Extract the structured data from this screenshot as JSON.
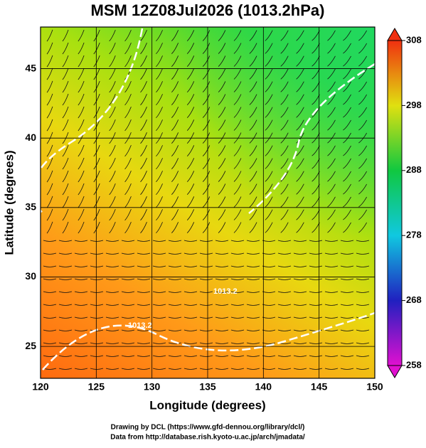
{
  "title": "MSM 12Z08Jul2026 (1013.2hPa)",
  "x_label": "Longitude (degrees)",
  "y_label": "Latitude  (degrees)",
  "xlim": [
    120,
    150
  ],
  "ylim": [
    22.7,
    48
  ],
  "xticks": [
    120,
    125,
    130,
    135,
    140,
    145,
    150
  ],
  "yticks": [
    25,
    30,
    35,
    40,
    45
  ],
  "colorbar": {
    "lim": [
      258,
      308
    ],
    "ticks": [
      258,
      268,
      278,
      288,
      298,
      308
    ]
  },
  "annotations": [
    "1013.2",
    "1013.2"
  ],
  "footer": [
    "Drawing by DCL (https://www.gfd-dennou.org/library/dcl/)",
    "Data from http://database.rish.kyoto-u.ac.jp/arch/jmadata/"
  ]
}
